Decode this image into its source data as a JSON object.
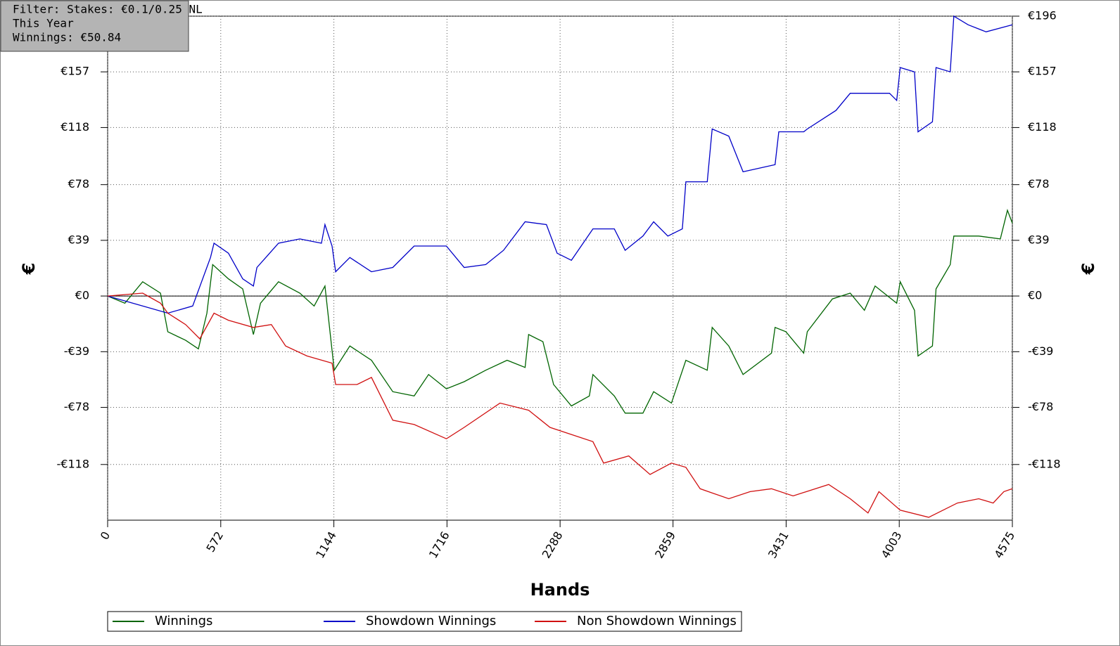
{
  "chart_data": {
    "type": "line",
    "annotations": [
      "Filter: Stakes: €0.1/0.25 NL",
      "This Year",
      "Winnings: €50.84"
    ],
    "x_label": "Hands",
    "y_label": "€",
    "y2_label": "€",
    "xlim": [
      0,
      4575
    ],
    "xticks": [
      0,
      572,
      1144,
      1716,
      2288,
      2859,
      3431,
      4003,
      4575
    ],
    "ylim": [
      -157,
      196
    ],
    "yticks": [
      {
        "value": 196,
        "label": "€196"
      },
      {
        "value": 157,
        "label": "€157"
      },
      {
        "value": 118,
        "label": "€118"
      },
      {
        "value": 78,
        "label": "€78"
      },
      {
        "value": 39,
        "label": "€39"
      },
      {
        "value": 0,
        "label": "€0"
      },
      {
        "value": -39,
        "label": "-€39"
      },
      {
        "value": -78,
        "label": "-€78"
      },
      {
        "value": -118,
        "label": "-€118"
      }
    ],
    "grid": true,
    "legend": "bottom",
    "series": [
      {
        "name": "Winnings",
        "color": "#006400",
        "x": [
          0,
          87,
          177,
          267,
          304,
          394,
          459,
          502,
          531,
          611,
          683,
          737,
          773,
          864,
          972,
          1044,
          1099,
          1146,
          1225,
          1334,
          1442,
          1550,
          1623,
          1713,
          1803,
          1912,
          2020,
          2111,
          2129,
          2201,
          2255,
          2345,
          2436,
          2454,
          2562,
          2617,
          2707,
          2761,
          2851,
          2924,
          3032,
          3057,
          3141,
          3213,
          3357,
          3375,
          3430,
          3520,
          3538,
          3665,
          3755,
          3827,
          3881,
          3990,
          4008,
          4080,
          4098,
          4171,
          4189,
          4261,
          4279,
          4405,
          4514,
          4550,
          4575
        ],
        "values": [
          0,
          -5,
          10,
          2,
          -25,
          -31,
          -37,
          -12,
          22,
          12,
          5,
          -27,
          -5,
          10,
          2,
          -7,
          7,
          -52,
          -35,
          -45,
          -67,
          -70,
          -55,
          -65,
          -60,
          -52,
          -45,
          -50,
          -27,
          -32,
          -62,
          -77,
          -70,
          -55,
          -70,
          -82,
          -82,
          -67,
          -75,
          -45,
          -52,
          -22,
          -35,
          -55,
          -40,
          -22,
          -25,
          -40,
          -25,
          -2,
          2,
          -10,
          7,
          -5,
          10,
          -10,
          -42,
          -35,
          5,
          22,
          42,
          42,
          40,
          60,
          51
        ]
      },
      {
        "name": "Showdown Winnings",
        "color": "#0000c8",
        "x": [
          0,
          304,
          430,
          520,
          538,
          611,
          683,
          737,
          755,
          864,
          972,
          1081,
          1099,
          1135,
          1153,
          1225,
          1334,
          1442,
          1550,
          1713,
          1803,
          1912,
          2002,
          2111,
          2219,
          2273,
          2345,
          2454,
          2562,
          2617,
          2707,
          2761,
          2833,
          2906,
          2924,
          3032,
          3057,
          3141,
          3213,
          3375,
          3394,
          3520,
          3538,
          3683,
          3755,
          3954,
          3990,
          4008,
          4080,
          4098,
          4171,
          4189,
          4261,
          4279,
          4351,
          4442,
          4575
        ],
        "values": [
          0,
          -12,
          -7,
          27,
          37,
          30,
          12,
          7,
          20,
          37,
          40,
          37,
          50,
          35,
          17,
          27,
          17,
          20,
          35,
          35,
          20,
          22,
          32,
          52,
          50,
          30,
          25,
          47,
          47,
          32,
          42,
          52,
          42,
          47,
          80,
          80,
          117,
          112,
          87,
          92,
          115,
          115,
          117,
          130,
          142,
          142,
          137,
          160,
          157,
          115,
          122,
          160,
          157,
          196,
          190,
          185,
          190
        ]
      },
      {
        "name": "Non Showdown Winnings",
        "color": "#d01010",
        "x": [
          0,
          177,
          267,
          304,
          394,
          466,
          538,
          611,
          737,
          828,
          900,
          1008,
          1135,
          1153,
          1261,
          1334,
          1442,
          1550,
          1713,
          1803,
          1984,
          2129,
          2237,
          2345,
          2454,
          2508,
          2635,
          2743,
          2851,
          2924,
          2996,
          3141,
          3249,
          3357,
          3466,
          3646,
          3755,
          3845,
          3900,
          4008,
          4152,
          4297,
          4405,
          4478,
          4532,
          4575
        ],
        "values": [
          0,
          2,
          -5,
          -12,
          -20,
          -30,
          -12,
          -17,
          -22,
          -20,
          -35,
          -42,
          -47,
          -62,
          -62,
          -57,
          -87,
          -90,
          -100,
          -92,
          -75,
          -80,
          -92,
          -97,
          -102,
          -117,
          -112,
          -125,
          -117,
          -120,
          -135,
          -142,
          -137,
          -135,
          -140,
          -132,
          -142,
          -152,
          -137,
          -150,
          -155,
          -145,
          -142,
          -145,
          -137,
          -135
        ]
      }
    ]
  }
}
